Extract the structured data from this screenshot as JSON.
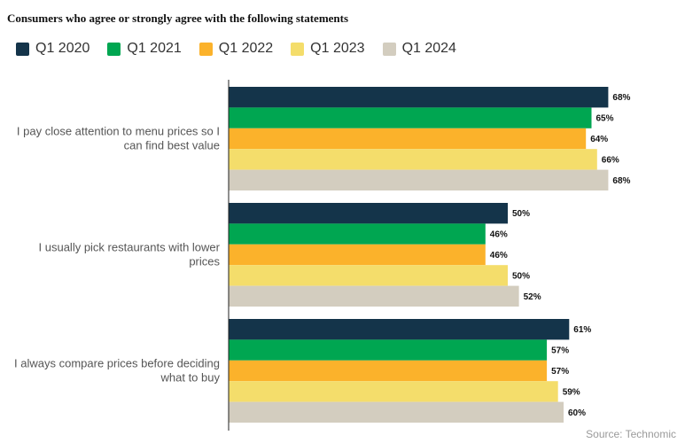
{
  "title": "Consumers who agree or strongly agree with the following statements",
  "source": "Source: Technomic",
  "chart_data": {
    "type": "bar",
    "orientation": "horizontal",
    "categories": [
      "I pay close attention to menu prices so I can find best value",
      "I usually pick restaurants with lower prices",
      "I always compare prices before deciding what to buy"
    ],
    "category_lines": [
      [
        "I pay close attention to menu prices so I",
        "can find best value"
      ],
      [
        "I usually pick restaurants with lower",
        "prices"
      ],
      [
        "I always compare prices before deciding",
        "what to buy"
      ]
    ],
    "series": [
      {
        "name": "Q1 2020",
        "color": "#14344a",
        "values": [
          68,
          50,
          61
        ]
      },
      {
        "name": "Q1 2021",
        "color": "#00a651",
        "values": [
          65,
          46,
          57
        ]
      },
      {
        "name": "Q1 2022",
        "color": "#fbb22b",
        "values": [
          64,
          46,
          57
        ]
      },
      {
        "name": "Q1 2023",
        "color": "#f4dd6b",
        "values": [
          66,
          50,
          59
        ]
      },
      {
        "name": "Q1 2024",
        "color": "#d3cdbf",
        "values": [
          68,
          52,
          60
        ]
      }
    ],
    "value_suffix": "%",
    "xlim": [
      0,
      100
    ],
    "grid": false,
    "legend_position": "top-left"
  }
}
